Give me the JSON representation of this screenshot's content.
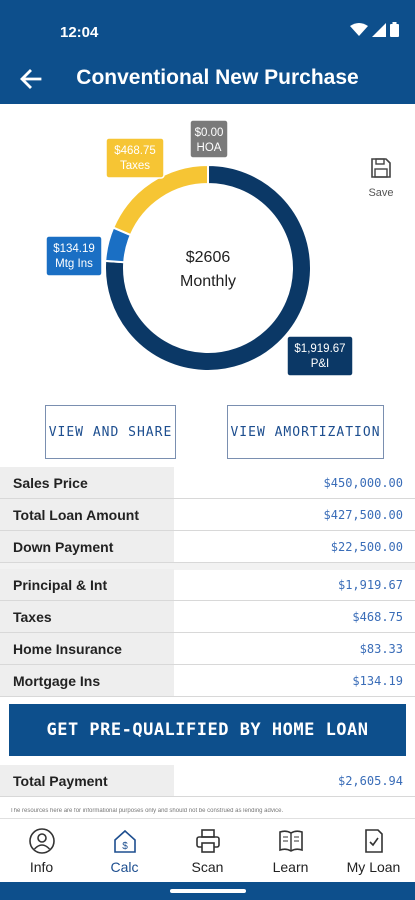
{
  "status_bar": {
    "time": "12:04"
  },
  "header": {
    "title": "Conventional New Purchase"
  },
  "chart_data": {
    "type": "pie",
    "center_amount": "$2606",
    "center_label": "Monthly",
    "slices": [
      {
        "label": "P&I",
        "value_text": "$1,919.67",
        "value": 1919.67,
        "color": "#0b3866"
      },
      {
        "label": "Mtg Ins",
        "value_text": "$134.19",
        "value": 134.19,
        "color": "#1a6fc4"
      },
      {
        "label": "Taxes",
        "value_text": "$468.75",
        "value": 468.75,
        "color": "#f6c534"
      },
      {
        "label": "HOA",
        "value_text": "$0.00",
        "value": 0.0,
        "color": "#7a7a7a"
      }
    ]
  },
  "save": {
    "label": "Save"
  },
  "buttons": {
    "share": "VIEW AND SHARE",
    "amortization": "VIEW AMORTIZATION"
  },
  "loan_rows": [
    {
      "label": "Sales Price",
      "value": "$450,000.00"
    },
    {
      "label": "Total Loan Amount",
      "value": "$427,500.00"
    },
    {
      "label": "Down Payment",
      "value": "$22,500.00"
    }
  ],
  "payment_rows": [
    {
      "label": "Principal & Int",
      "value": "$1,919.67"
    },
    {
      "label": "Taxes",
      "value": "$468.75"
    },
    {
      "label": "Home Insurance",
      "value": "$83.33"
    },
    {
      "label": "Mortgage Ins",
      "value": "$134.19"
    }
  ],
  "cta": {
    "label": "GET PRE-QUALIFIED BY HOME LOAN"
  },
  "total": {
    "label": "Total Payment",
    "value": "$2,605.94"
  },
  "disclaimer": "The resources here are for informational purposes only and should not be construed as lending advice.",
  "nav": [
    {
      "label": "Info",
      "icon": "person-icon"
    },
    {
      "label": "Calc",
      "icon": "calc-home-icon"
    },
    {
      "label": "Scan",
      "icon": "printer-icon"
    },
    {
      "label": "Learn",
      "icon": "book-icon"
    },
    {
      "label": "My Loan",
      "icon": "document-check-icon"
    }
  ],
  "colors": {
    "primary": "#0d4f8c",
    "value_text": "#3a6db8"
  }
}
